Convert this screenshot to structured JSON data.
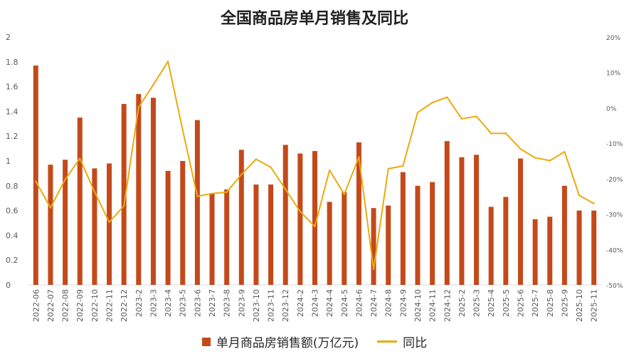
{
  "chart_data": {
    "type": "bar+line",
    "title": "全国商品房单月销售及同比",
    "categories": [
      "2022-06",
      "2022-07",
      "2022-08",
      "2022-09",
      "2022-10",
      "2022-11",
      "2022-12",
      "2023-2",
      "2023-3",
      "2023-4",
      "2023-5",
      "2023-6",
      "2023-7",
      "2023-8",
      "2023-9",
      "2023-10",
      "2023-11",
      "2023-12",
      "2024-2",
      "2024-3",
      "2024-4",
      "2024-5",
      "2024-6",
      "2024-7",
      "2024-8",
      "2024-9",
      "2024-10",
      "2024-11",
      "2024-12",
      "2025-2",
      "2025-3",
      "2025-4",
      "2025-5",
      "2025-6",
      "2025-7",
      "2025-8",
      "2025-9",
      "2025-10",
      "2025-11"
    ],
    "series": [
      {
        "name": "单月商品房销售额(万亿元)",
        "type": "bar",
        "axis": "left",
        "color": "#C4491A",
        "values": [
          1.77,
          0.97,
          1.01,
          1.35,
          0.94,
          0.98,
          1.46,
          1.54,
          1.51,
          0.92,
          1.0,
          1.33,
          0.74,
          0.77,
          1.09,
          0.81,
          0.81,
          1.13,
          1.06,
          1.08,
          0.67,
          0.75,
          1.15,
          0.62,
          0.64,
          0.91,
          0.8,
          0.83,
          1.16,
          1.03,
          1.05,
          0.63,
          0.71,
          1.02,
          0.53,
          0.55,
          0.8,
          0.6,
          0.6
        ]
      },
      {
        "name": "同比",
        "type": "line",
        "axis": "right",
        "color": "#EBAA0E",
        "values": [
          -20.8,
          -28.2,
          -20.2,
          -14.3,
          -23.7,
          -32.3,
          -27.7,
          0.2,
          6.5,
          13.1,
          -6.2,
          -25.0,
          -24.2,
          -23.8,
          -18.8,
          -14.5,
          -16.8,
          -23.0,
          -29.3,
          -33.5,
          -17.6,
          -24.4,
          -13.9,
          -45.6,
          -17.2,
          -16.4,
          -1.3,
          1.5,
          3.0,
          -3.1,
          -2.4,
          -7.2,
          -7.2,
          -11.6,
          -14.1,
          -14.9,
          -12.4,
          -24.7,
          -27.0
        ]
      }
    ],
    "y_left": {
      "ylim": [
        0,
        2
      ],
      "ticks": [
        "0",
        "0.2",
        "0.4",
        "0.6",
        "0.8",
        "1",
        "1.2",
        "1.4",
        "1.6",
        "1.8",
        "2"
      ]
    },
    "y_right": {
      "ylim": [
        -50,
        20
      ],
      "ticks": [
        "-50%",
        "-40%",
        "-30%",
        "-20%",
        "-10%",
        "0%",
        "10%",
        "20%"
      ]
    },
    "legend": {
      "position": "bottom",
      "labels": [
        "单月商品房销售额(万亿元)",
        "同比"
      ]
    },
    "grid": false
  }
}
